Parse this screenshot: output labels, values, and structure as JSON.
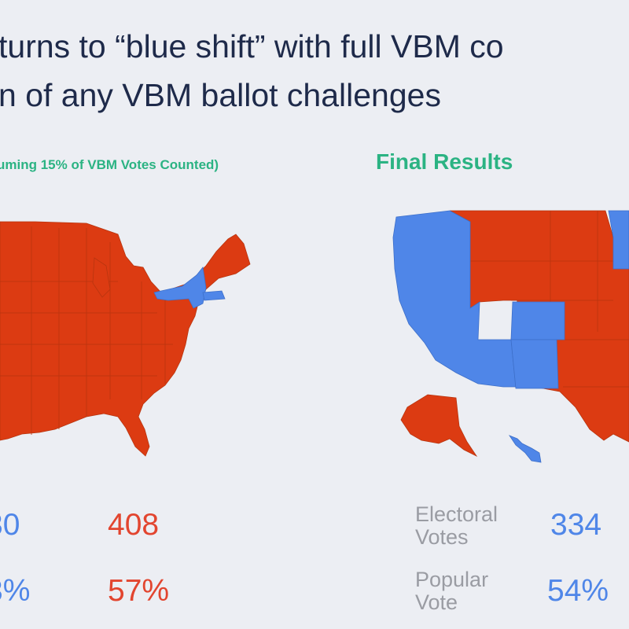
{
  "slide": {
    "title_line1": "turns to “blue shift” with full VBM co",
    "title_line2": "n of any VBM ballot challenges"
  },
  "left_panel": {
    "heading": "uming 15% of VBM Votes Counted)",
    "electoral_votes": {
      "blue": "30",
      "red": "408"
    },
    "popular_vote": {
      "blue": "3%",
      "red": "57%"
    }
  },
  "right_panel": {
    "heading": "Final Results",
    "electoral_label_line1": "Electoral",
    "electoral_label_line2": "Votes",
    "popular_label_line1": "Popular",
    "popular_label_line2": "Vote",
    "electoral_votes": {
      "blue": "334"
    },
    "popular_vote": {
      "blue": "54%"
    }
  },
  "colors": {
    "democrat": "#4f86e8",
    "republican": "#dc3b12",
    "heading_green": "#2bb383"
  }
}
